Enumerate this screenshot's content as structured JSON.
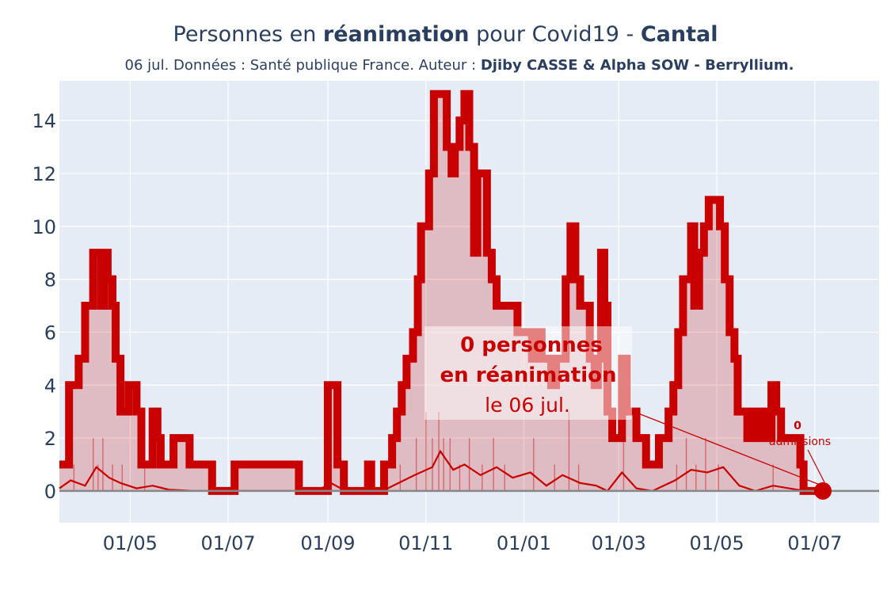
{
  "title": {
    "prefix": "Personnes en ",
    "bold1": "réanimation",
    "middle": " pour Covid19 - ",
    "bold2": "Cantal"
  },
  "subtitle": {
    "prefix": "06 jul. Données : Santé publique France. Auteur : ",
    "bold": "Djiby CASSE & Alpha SOW - Berryllium."
  },
  "colors": {
    "plot_bg": "#e5ecf6",
    "line": "#c90000",
    "fill": "rgba(201,0,0,0.2)",
    "grid": "#ffffff",
    "zero_line": "#888888",
    "text": "#2a3f5f"
  },
  "annotations": {
    "main_line1": "0 personnes",
    "main_line2": "en réanimation",
    "main_line3": "le 06 jul.",
    "admissions_value": "0",
    "admissions_label": "admissions"
  },
  "chart_data": {
    "type": "line",
    "x_range": [
      "2020-03-18",
      "2021-08-10"
    ],
    "ylim": [
      -1.2,
      15.5
    ],
    "y_ticks": [
      0,
      2,
      4,
      6,
      8,
      10,
      12,
      14
    ],
    "x_ticks": [
      {
        "date": "2020-05-01",
        "label": "01/05"
      },
      {
        "date": "2020-07-01",
        "label": "01/07"
      },
      {
        "date": "2020-09-01",
        "label": "01/09"
      },
      {
        "date": "2020-11-01",
        "label": "01/11"
      },
      {
        "date": "2021-01-01",
        "label": "01/01"
      },
      {
        "date": "2021-03-01",
        "label": "01/03"
      },
      {
        "date": "2021-05-01",
        "label": "01/05"
      },
      {
        "date": "2021-07-01",
        "label": "01/07"
      }
    ],
    "grid": true,
    "series": [
      {
        "name": "Personnes en réanimation",
        "points": [
          [
            "2020-03-18",
            1
          ],
          [
            "2020-03-22",
            1
          ],
          [
            "2020-03-24",
            4
          ],
          [
            "2020-03-28",
            4
          ],
          [
            "2020-03-30",
            5
          ],
          [
            "2020-04-03",
            7
          ],
          [
            "2020-04-06",
            7
          ],
          [
            "2020-04-08",
            9
          ],
          [
            "2020-04-11",
            9
          ],
          [
            "2020-04-13",
            7
          ],
          [
            "2020-04-15",
            9
          ],
          [
            "2020-04-17",
            8
          ],
          [
            "2020-04-20",
            7
          ],
          [
            "2020-04-22",
            5
          ],
          [
            "2020-04-25",
            3
          ],
          [
            "2020-04-28",
            3
          ],
          [
            "2020-04-30",
            4
          ],
          [
            "2020-05-03",
            4
          ],
          [
            "2020-05-05",
            3
          ],
          [
            "2020-05-08",
            1
          ],
          [
            "2020-05-12",
            1
          ],
          [
            "2020-05-15",
            3
          ],
          [
            "2020-05-18",
            2
          ],
          [
            "2020-05-20",
            1
          ],
          [
            "2020-05-26",
            1
          ],
          [
            "2020-05-28",
            2
          ],
          [
            "2020-06-05",
            2
          ],
          [
            "2020-06-07",
            1
          ],
          [
            "2020-06-14",
            1
          ],
          [
            "2020-06-19",
            1
          ],
          [
            "2020-06-21",
            0
          ],
          [
            "2020-07-03",
            0
          ],
          [
            "2020-07-05",
            1
          ],
          [
            "2020-07-15",
            1
          ],
          [
            "2020-08-12",
            1
          ],
          [
            "2020-08-14",
            0
          ],
          [
            "2020-08-29",
            0
          ],
          [
            "2020-09-01",
            4
          ],
          [
            "2020-09-05",
            4
          ],
          [
            "2020-09-07",
            1
          ],
          [
            "2020-09-09",
            1
          ],
          [
            "2020-09-11",
            0
          ],
          [
            "2020-09-24",
            0
          ],
          [
            "2020-09-26",
            1
          ],
          [
            "2020-09-28",
            0
          ],
          [
            "2020-10-04",
            0
          ],
          [
            "2020-10-06",
            1
          ],
          [
            "2020-10-09",
            1
          ],
          [
            "2020-10-11",
            2
          ],
          [
            "2020-10-14",
            3
          ],
          [
            "2020-10-17",
            4
          ],
          [
            "2020-10-20",
            5
          ],
          [
            "2020-10-24",
            6
          ],
          [
            "2020-10-27",
            8
          ],
          [
            "2020-10-29",
            10
          ],
          [
            "2020-11-01",
            10
          ],
          [
            "2020-11-03",
            12
          ],
          [
            "2020-11-06",
            15
          ],
          [
            "2020-11-11",
            15
          ],
          [
            "2020-11-14",
            13
          ],
          [
            "2020-11-17",
            12
          ],
          [
            "2020-11-19",
            13
          ],
          [
            "2020-11-22",
            14
          ],
          [
            "2020-11-25",
            15
          ],
          [
            "2020-11-28",
            13
          ],
          [
            "2020-12-01",
            9
          ],
          [
            "2020-12-03",
            12
          ],
          [
            "2020-12-07",
            12
          ],
          [
            "2020-12-09",
            9
          ],
          [
            "2020-12-12",
            8
          ],
          [
            "2020-12-15",
            7
          ],
          [
            "2020-12-25",
            7
          ],
          [
            "2020-12-28",
            6
          ],
          [
            "2021-01-03",
            6
          ],
          [
            "2021-01-06",
            5
          ],
          [
            "2021-01-09",
            6
          ],
          [
            "2021-01-12",
            5
          ],
          [
            "2021-01-15",
            5
          ],
          [
            "2021-01-18",
            4
          ],
          [
            "2021-01-21",
            5
          ],
          [
            "2021-01-24",
            5
          ],
          [
            "2021-01-27",
            8
          ],
          [
            "2021-01-30",
            10
          ],
          [
            "2021-02-02",
            8
          ],
          [
            "2021-02-05",
            7
          ],
          [
            "2021-02-08",
            7
          ],
          [
            "2021-02-11",
            5
          ],
          [
            "2021-02-14",
            4
          ],
          [
            "2021-02-16",
            5
          ],
          [
            "2021-02-18",
            9
          ],
          [
            "2021-02-20",
            7
          ],
          [
            "2021-02-22",
            3
          ],
          [
            "2021-02-25",
            2
          ],
          [
            "2021-02-28",
            2
          ],
          [
            "2021-03-03",
            5
          ],
          [
            "2021-03-06",
            3
          ],
          [
            "2021-03-09",
            3
          ],
          [
            "2021-03-12",
            2
          ],
          [
            "2021-03-16",
            2
          ],
          [
            "2021-03-18",
            1
          ],
          [
            "2021-03-24",
            1
          ],
          [
            "2021-03-26",
            2
          ],
          [
            "2021-03-29",
            2
          ],
          [
            "2021-04-01",
            3
          ],
          [
            "2021-04-04",
            4
          ],
          [
            "2021-04-07",
            6
          ],
          [
            "2021-04-10",
            8
          ],
          [
            "2021-04-12",
            8
          ],
          [
            "2021-04-15",
            10
          ],
          [
            "2021-04-17",
            7
          ],
          [
            "2021-04-20",
            9
          ],
          [
            "2021-04-23",
            10
          ],
          [
            "2021-04-26",
            11
          ],
          [
            "2021-04-30",
            11
          ],
          [
            "2021-05-03",
            10
          ],
          [
            "2021-05-06",
            8
          ],
          [
            "2021-05-09",
            6
          ],
          [
            "2021-05-12",
            5
          ],
          [
            "2021-05-14",
            3
          ],
          [
            "2021-05-18",
            3
          ],
          [
            "2021-05-20",
            2
          ],
          [
            "2021-05-24",
            3
          ],
          [
            "2021-05-27",
            2
          ],
          [
            "2021-05-30",
            3
          ],
          [
            "2021-06-02",
            2
          ],
          [
            "2021-06-04",
            4
          ],
          [
            "2021-06-07",
            3
          ],
          [
            "2021-06-10",
            2
          ],
          [
            "2021-06-20",
            2
          ],
          [
            "2021-06-22",
            1
          ],
          [
            "2021-06-24",
            0
          ],
          [
            "2021-07-06",
            0
          ]
        ]
      },
      {
        "name": "Admissions (moyenne)",
        "points": [
          [
            "2020-03-18",
            0.1
          ],
          [
            "2020-03-25",
            0.4
          ],
          [
            "2020-04-03",
            0.2
          ],
          [
            "2020-04-10",
            0.9
          ],
          [
            "2020-04-18",
            0.5
          ],
          [
            "2020-04-25",
            0.3
          ],
          [
            "2020-05-05",
            0.1
          ],
          [
            "2020-05-15",
            0.2
          ],
          [
            "2020-05-25",
            0.05
          ],
          [
            "2020-06-10",
            0
          ],
          [
            "2020-08-25",
            0
          ],
          [
            "2020-09-03",
            0.3
          ],
          [
            "2020-09-12",
            0
          ],
          [
            "2020-10-05",
            0
          ],
          [
            "2020-10-15",
            0.3
          ],
          [
            "2020-10-25",
            0.6
          ],
          [
            "2020-11-05",
            0.9
          ],
          [
            "2020-11-10",
            1.5
          ],
          [
            "2020-11-18",
            0.8
          ],
          [
            "2020-11-25",
            1.0
          ],
          [
            "2020-12-05",
            0.6
          ],
          [
            "2020-12-15",
            0.9
          ],
          [
            "2020-12-25",
            0.5
          ],
          [
            "2021-01-05",
            0.7
          ],
          [
            "2021-01-15",
            0.2
          ],
          [
            "2021-01-25",
            0.6
          ],
          [
            "2021-02-05",
            0.3
          ],
          [
            "2021-02-15",
            0.2
          ],
          [
            "2021-02-22",
            0
          ],
          [
            "2021-03-03",
            0.7
          ],
          [
            "2021-03-12",
            0.1
          ],
          [
            "2021-03-22",
            0
          ],
          [
            "2021-04-05",
            0.4
          ],
          [
            "2021-04-15",
            0.8
          ],
          [
            "2021-04-25",
            0.7
          ],
          [
            "2021-05-05",
            0.9
          ],
          [
            "2021-05-15",
            0.2
          ],
          [
            "2021-05-25",
            0
          ],
          [
            "2021-06-05",
            0.2
          ],
          [
            "2021-06-25",
            0
          ],
          [
            "2021-07-06",
            0
          ]
        ]
      }
    ],
    "admission_bars": [
      [
        "2020-03-27",
        1
      ],
      [
        "2020-04-08",
        2
      ],
      [
        "2020-04-11",
        1
      ],
      [
        "2020-04-14",
        2
      ],
      [
        "2020-04-20",
        1
      ],
      [
        "2020-04-26",
        1
      ],
      [
        "2020-05-10",
        1
      ],
      [
        "2020-09-02",
        1
      ],
      [
        "2020-10-16",
        1
      ],
      [
        "2020-10-26",
        2
      ],
      [
        "2020-11-01",
        3
      ],
      [
        "2020-11-05",
        2
      ],
      [
        "2020-11-09",
        3
      ],
      [
        "2020-11-12",
        2
      ],
      [
        "2020-11-16",
        2
      ],
      [
        "2020-11-22",
        1
      ],
      [
        "2020-11-28",
        2
      ],
      [
        "2020-12-06",
        1
      ],
      [
        "2020-12-13",
        2
      ],
      [
        "2020-12-20",
        1
      ],
      [
        "2021-01-07",
        2
      ],
      [
        "2021-01-20",
        1
      ],
      [
        "2021-01-29",
        3
      ],
      [
        "2021-02-04",
        1
      ],
      [
        "2021-03-04",
        2
      ],
      [
        "2021-04-06",
        1
      ],
      [
        "2021-04-12",
        2
      ],
      [
        "2021-04-18",
        1
      ],
      [
        "2021-04-24",
        2
      ],
      [
        "2021-05-02",
        1
      ],
      [
        "2021-06-05",
        1
      ]
    ]
  }
}
